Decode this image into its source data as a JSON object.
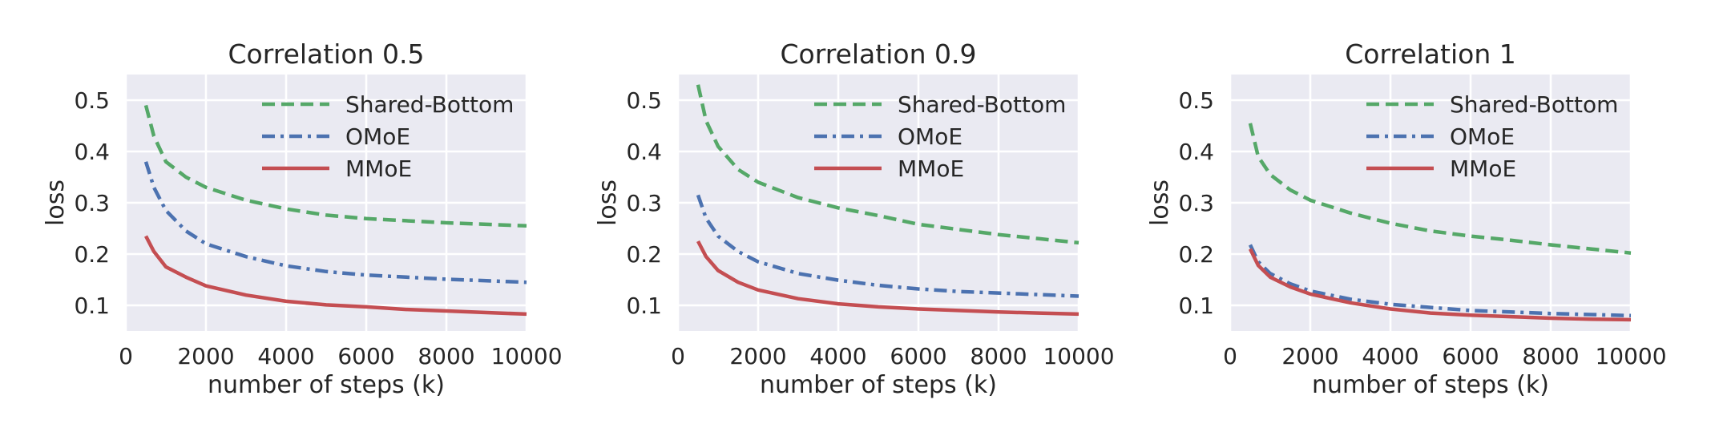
{
  "chart_data": [
    {
      "type": "line",
      "title": "Correlation 0.5",
      "xlabel": "number of steps (k)",
      "ylabel": "loss",
      "xlim": [
        0,
        10000
      ],
      "ylim": [
        0.05,
        0.55
      ],
      "xticks": [
        0,
        2000,
        4000,
        6000,
        8000,
        10000
      ],
      "yticks": [
        0.1,
        0.2,
        0.3,
        0.4,
        0.5
      ],
      "grid": true,
      "legend_position": "top-right",
      "x": [
        500,
        700,
        1000,
        1500,
        2000,
        3000,
        4000,
        5000,
        6000,
        7000,
        8000,
        9000,
        10000
      ],
      "series": [
        {
          "name": "Shared-Bottom",
          "color": "#55A868",
          "dash": "dashed",
          "values": [
            0.49,
            0.43,
            0.38,
            0.35,
            0.33,
            0.305,
            0.288,
            0.276,
            0.269,
            0.265,
            0.261,
            0.258,
            0.255
          ]
        },
        {
          "name": "OMoE",
          "color": "#4C72B0",
          "dash": "dashdot",
          "values": [
            0.38,
            0.33,
            0.285,
            0.245,
            0.22,
            0.195,
            0.177,
            0.166,
            0.159,
            0.155,
            0.151,
            0.148,
            0.145
          ]
        },
        {
          "name": "MMoE",
          "color": "#C44E52",
          "dash": "solid",
          "values": [
            0.235,
            0.205,
            0.175,
            0.155,
            0.138,
            0.12,
            0.108,
            0.101,
            0.097,
            0.092,
            0.089,
            0.086,
            0.083
          ]
        }
      ]
    },
    {
      "type": "line",
      "title": "Correlation 0.9",
      "xlabel": "number of steps (k)",
      "ylabel": "loss",
      "xlim": [
        0,
        10000
      ],
      "ylim": [
        0.05,
        0.55
      ],
      "xticks": [
        0,
        2000,
        4000,
        6000,
        8000,
        10000
      ],
      "yticks": [
        0.1,
        0.2,
        0.3,
        0.4,
        0.5
      ],
      "grid": true,
      "legend_position": "top-right",
      "x": [
        500,
        700,
        1000,
        1500,
        2000,
        3000,
        4000,
        5000,
        6000,
        7000,
        8000,
        9000,
        10000
      ],
      "series": [
        {
          "name": "Shared-Bottom",
          "color": "#55A868",
          "dash": "dashed",
          "values": [
            0.53,
            0.46,
            0.41,
            0.365,
            0.34,
            0.31,
            0.29,
            0.275,
            0.258,
            0.248,
            0.238,
            0.23,
            0.222
          ]
        },
        {
          "name": "OMoE",
          "color": "#4C72B0",
          "dash": "dashdot",
          "values": [
            0.315,
            0.27,
            0.235,
            0.205,
            0.185,
            0.162,
            0.149,
            0.139,
            0.132,
            0.127,
            0.124,
            0.121,
            0.118
          ]
        },
        {
          "name": "MMoE",
          "color": "#C44E52",
          "dash": "solid",
          "values": [
            0.225,
            0.195,
            0.168,
            0.145,
            0.13,
            0.113,
            0.103,
            0.097,
            0.093,
            0.09,
            0.087,
            0.085,
            0.083
          ]
        }
      ]
    },
    {
      "type": "line",
      "title": "Correlation 1",
      "xlabel": "number of steps (k)",
      "ylabel": "loss",
      "xlim": [
        0,
        10000
      ],
      "ylim": [
        0.05,
        0.55
      ],
      "xticks": [
        0,
        2000,
        4000,
        6000,
        8000,
        10000
      ],
      "yticks": [
        0.1,
        0.2,
        0.3,
        0.4,
        0.5
      ],
      "grid": true,
      "legend_position": "top-right",
      "x": [
        500,
        700,
        1000,
        1500,
        2000,
        3000,
        4000,
        5000,
        6000,
        7000,
        8000,
        9000,
        10000
      ],
      "series": [
        {
          "name": "Shared-Bottom",
          "color": "#55A868",
          "dash": "dashed",
          "values": [
            0.455,
            0.39,
            0.355,
            0.325,
            0.305,
            0.28,
            0.26,
            0.245,
            0.235,
            0.227,
            0.218,
            0.21,
            0.202
          ]
        },
        {
          "name": "OMoE",
          "color": "#4C72B0",
          "dash": "dashdot",
          "values": [
            0.218,
            0.185,
            0.162,
            0.142,
            0.128,
            0.112,
            0.102,
            0.096,
            0.09,
            0.087,
            0.084,
            0.082,
            0.08
          ]
        },
        {
          "name": "MMoE",
          "color": "#C44E52",
          "dash": "solid",
          "values": [
            0.21,
            0.178,
            0.155,
            0.136,
            0.122,
            0.105,
            0.093,
            0.085,
            0.081,
            0.078,
            0.075,
            0.073,
            0.072
          ]
        }
      ]
    }
  ]
}
